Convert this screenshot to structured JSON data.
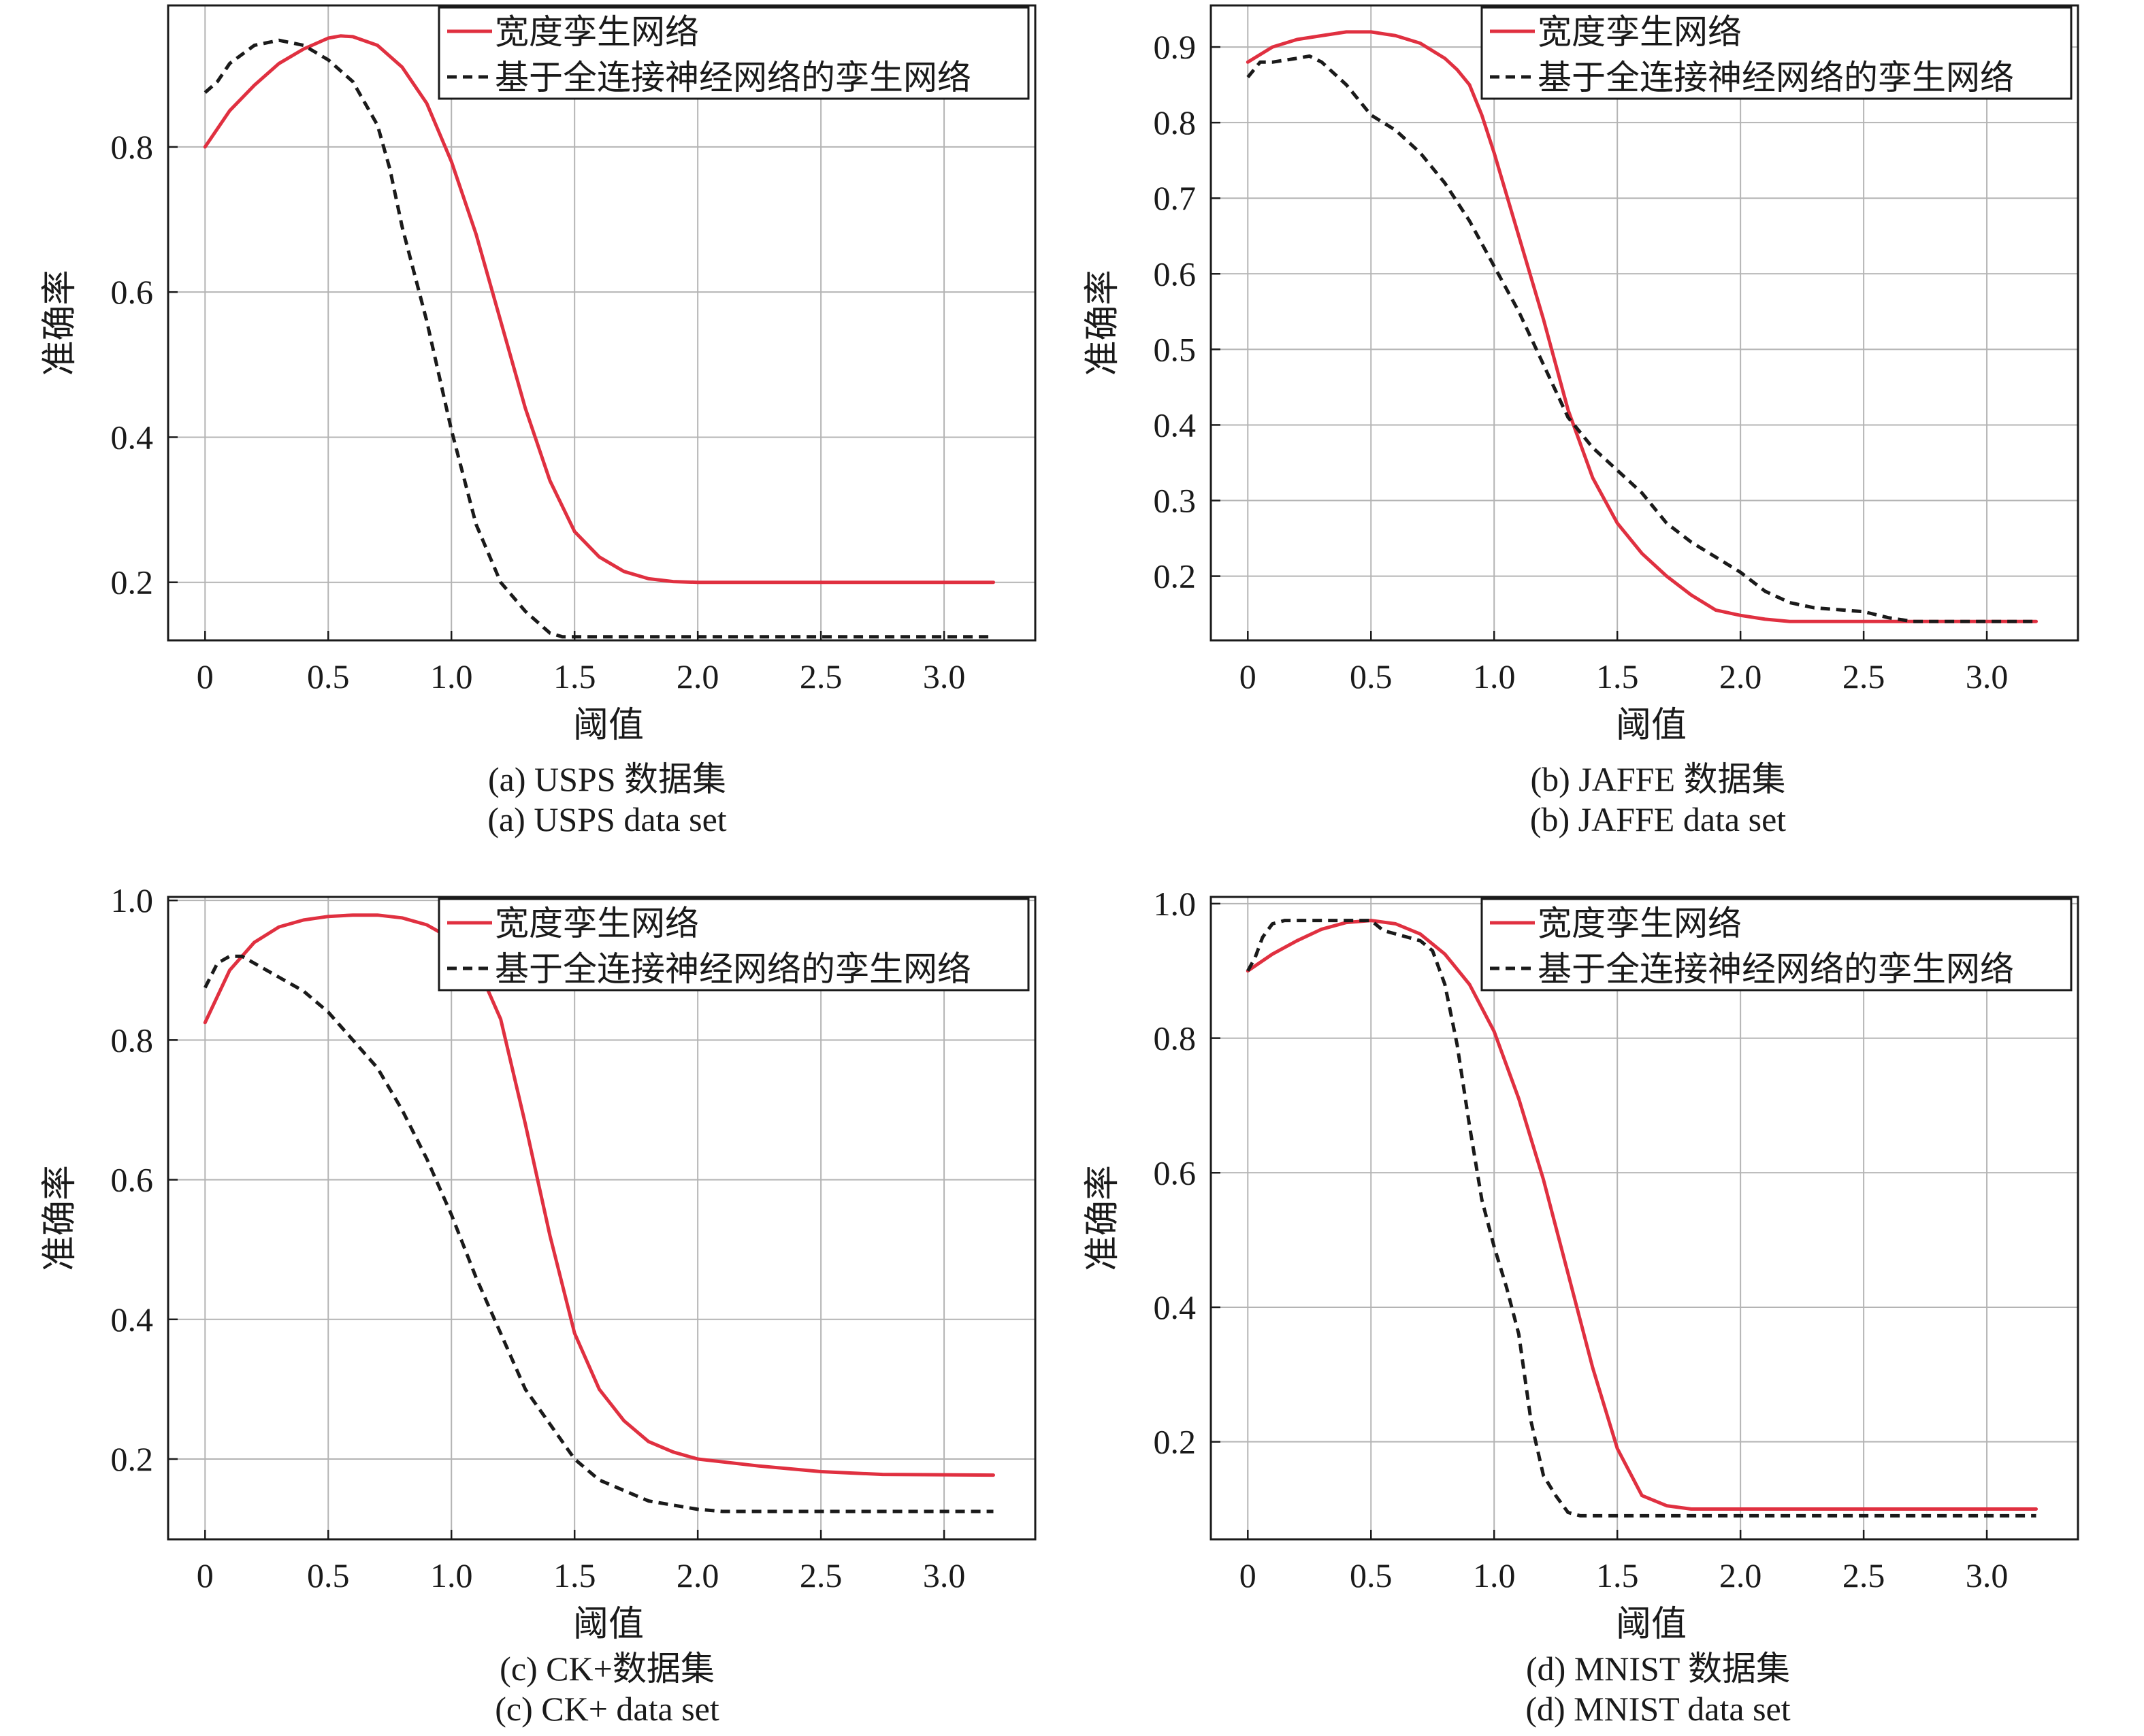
{
  "legend_labels": [
    "宽度孪生网络",
    "基于全连接神经网络的孪生网络"
  ],
  "colors": {
    "red": "#e03040",
    "black": "#1a1a1a",
    "grid": "#b4b4b4"
  },
  "chart_data": [
    {
      "type": "line",
      "panel": "a",
      "xlabel": "阈值",
      "ylabel": "准确率",
      "caption_cn": "(a) USPS 数据集",
      "caption_en": "(a) USPS data set",
      "xlim": [
        -0.15,
        3.37
      ],
      "ylim": [
        0.12,
        0.995
      ],
      "xticks": [
        0,
        0.5,
        1.0,
        1.5,
        2.0,
        2.5,
        3.0
      ],
      "xtick_labels": [
        "0",
        "0.5",
        "1.0",
        "1.5",
        "2.0",
        "2.5",
        "3.0"
      ],
      "yticks": [
        0.2,
        0.4,
        0.6,
        0.8
      ],
      "ytick_labels": [
        "0.2",
        "0.4",
        "0.6",
        "0.8"
      ],
      "legend": "top-right",
      "grid": true,
      "series": [
        {
          "name": "宽度孪生网络",
          "color": "#e03040",
          "dash": "solid",
          "x": [
            0,
            0.1,
            0.2,
            0.3,
            0.4,
            0.5,
            0.55,
            0.6,
            0.7,
            0.8,
            0.9,
            1.0,
            1.1,
            1.2,
            1.3,
            1.4,
            1.5,
            1.6,
            1.7,
            1.8,
            1.9,
            2.0,
            2.5,
            3.2
          ],
          "y": [
            0.8,
            0.85,
            0.885,
            0.915,
            0.935,
            0.95,
            0.953,
            0.952,
            0.94,
            0.91,
            0.86,
            0.78,
            0.68,
            0.56,
            0.44,
            0.34,
            0.27,
            0.235,
            0.215,
            0.205,
            0.201,
            0.2,
            0.2,
            0.2
          ]
        },
        {
          "name": "基于全连接神经网络的孪生网络",
          "color": "#1a1a1a",
          "dash": "dashed",
          "x": [
            0,
            0.05,
            0.1,
            0.2,
            0.3,
            0.4,
            0.5,
            0.6,
            0.7,
            0.75,
            0.8,
            0.9,
            1.0,
            1.1,
            1.2,
            1.3,
            1.4,
            1.45,
            1.5,
            2.0,
            3.2
          ],
          "y": [
            0.875,
            0.89,
            0.915,
            0.94,
            0.947,
            0.94,
            0.92,
            0.89,
            0.83,
            0.77,
            0.69,
            0.56,
            0.41,
            0.28,
            0.2,
            0.16,
            0.13,
            0.125,
            0.125,
            0.125,
            0.125
          ]
        }
      ]
    },
    {
      "type": "line",
      "panel": "b",
      "xlabel": "阈值",
      "ylabel": "准确率",
      "caption_cn": "(b) JAFFE 数据集",
      "caption_en": "(b) JAFFE data set",
      "xlim": [
        -0.15,
        3.37
      ],
      "ylim": [
        0.115,
        0.955
      ],
      "xticks": [
        0,
        0.5,
        1.0,
        1.5,
        2.0,
        2.5,
        3.0
      ],
      "xtick_labels": [
        "0",
        "0.5",
        "1.0",
        "1.5",
        "2.0",
        "2.5",
        "3.0"
      ],
      "yticks": [
        0.2,
        0.3,
        0.4,
        0.5,
        0.6,
        0.7,
        0.8,
        0.9
      ],
      "ytick_labels": [
        "0.2",
        "0.3",
        "0.4",
        "0.5",
        "0.6",
        "0.7",
        "0.8",
        "0.9"
      ],
      "legend": "top-right",
      "grid": true,
      "series": [
        {
          "name": "宽度孪生网络",
          "color": "#e03040",
          "dash": "solid",
          "x": [
            0,
            0.1,
            0.2,
            0.3,
            0.4,
            0.5,
            0.6,
            0.7,
            0.8,
            0.85,
            0.9,
            0.95,
            1.0,
            1.1,
            1.2,
            1.3,
            1.4,
            1.5,
            1.6,
            1.7,
            1.8,
            1.9,
            2.0,
            2.1,
            2.2,
            2.5,
            3.2
          ],
          "y": [
            0.88,
            0.9,
            0.91,
            0.915,
            0.92,
            0.92,
            0.915,
            0.905,
            0.885,
            0.87,
            0.85,
            0.81,
            0.76,
            0.65,
            0.54,
            0.42,
            0.33,
            0.27,
            0.23,
            0.2,
            0.175,
            0.155,
            0.148,
            0.143,
            0.14,
            0.14,
            0.14
          ]
        },
        {
          "name": "基于全连接神经网络的孪生网络",
          "color": "#1a1a1a",
          "dash": "dashed",
          "x": [
            0,
            0.05,
            0.1,
            0.2,
            0.25,
            0.3,
            0.4,
            0.5,
            0.6,
            0.7,
            0.8,
            0.9,
            1.0,
            1.1,
            1.2,
            1.3,
            1.4,
            1.5,
            1.6,
            1.7,
            1.8,
            1.9,
            2.0,
            2.1,
            2.2,
            2.3,
            2.5,
            2.6,
            2.7,
            3.2
          ],
          "y": [
            0.86,
            0.88,
            0.88,
            0.885,
            0.888,
            0.88,
            0.85,
            0.81,
            0.79,
            0.76,
            0.72,
            0.67,
            0.61,
            0.55,
            0.48,
            0.41,
            0.37,
            0.34,
            0.31,
            0.27,
            0.245,
            0.225,
            0.205,
            0.18,
            0.165,
            0.158,
            0.153,
            0.145,
            0.14,
            0.14
          ]
        }
      ]
    },
    {
      "type": "line",
      "panel": "c",
      "xlabel": "阈值",
      "ylabel": "准确率",
      "caption_cn": "(c) CK+数据集",
      "caption_en": "(c) CK+ data set",
      "xlim": [
        -0.15,
        3.37
      ],
      "ylim": [
        0.085,
        1.005
      ],
      "xticks": [
        0,
        0.5,
        1.0,
        1.5,
        2.0,
        2.5,
        3.0
      ],
      "xtick_labels": [
        "0",
        "0.5",
        "1.0",
        "1.5",
        "2.0",
        "2.5",
        "3.0"
      ],
      "yticks": [
        0.2,
        0.4,
        0.6,
        0.8,
        1.0
      ],
      "ytick_labels": [
        "0.2",
        "0.4",
        "0.6",
        "0.8",
        "1.0"
      ],
      "legend": "top-right",
      "grid": true,
      "series": [
        {
          "name": "宽度孪生网络",
          "color": "#e03040",
          "dash": "solid",
          "x": [
            0,
            0.1,
            0.2,
            0.3,
            0.4,
            0.5,
            0.6,
            0.7,
            0.8,
            0.9,
            1.0,
            1.1,
            1.2,
            1.3,
            1.4,
            1.5,
            1.6,
            1.7,
            1.8,
            1.9,
            2.0,
            2.25,
            2.5,
            2.75,
            3.2
          ],
          "y": [
            0.825,
            0.9,
            0.94,
            0.962,
            0.972,
            0.977,
            0.979,
            0.979,
            0.975,
            0.965,
            0.945,
            0.91,
            0.83,
            0.68,
            0.52,
            0.38,
            0.3,
            0.255,
            0.225,
            0.21,
            0.2,
            0.19,
            0.182,
            0.178,
            0.177
          ]
        },
        {
          "name": "基于全连接神经网络的孪生网络",
          "color": "#1a1a1a",
          "dash": "dashed",
          "x": [
            0,
            0.05,
            0.1,
            0.15,
            0.2,
            0.3,
            0.4,
            0.5,
            0.6,
            0.7,
            0.8,
            0.9,
            1.0,
            1.1,
            1.2,
            1.3,
            1.4,
            1.5,
            1.6,
            1.8,
            2.0,
            2.1,
            3.2
          ],
          "y": [
            0.875,
            0.91,
            0.92,
            0.92,
            0.91,
            0.89,
            0.87,
            0.84,
            0.8,
            0.76,
            0.7,
            0.63,
            0.55,
            0.46,
            0.38,
            0.3,
            0.25,
            0.2,
            0.17,
            0.14,
            0.128,
            0.125,
            0.125
          ]
        }
      ]
    },
    {
      "type": "line",
      "panel": "d",
      "xlabel": "阈值",
      "ylabel": "准确率",
      "caption_cn": "(d) MNIST 数据集",
      "caption_en": "(d) MNIST data set",
      "xlim": [
        -0.15,
        3.37
      ],
      "ylim": [
        0.055,
        1.01
      ],
      "xticks": [
        0,
        0.5,
        1.0,
        1.5,
        2.0,
        2.5,
        3.0
      ],
      "xtick_labels": [
        "0",
        "0.5",
        "1.0",
        "1.5",
        "2.0",
        "2.5",
        "3.0"
      ],
      "yticks": [
        0.2,
        0.4,
        0.6,
        0.8,
        1.0
      ],
      "ytick_labels": [
        "0.2",
        "0.4",
        "0.6",
        "0.8",
        "1.0"
      ],
      "legend": "top-right",
      "grid": true,
      "series": [
        {
          "name": "宽度孪生网络",
          "color": "#e03040",
          "dash": "solid",
          "x": [
            0,
            0.1,
            0.2,
            0.3,
            0.4,
            0.5,
            0.6,
            0.7,
            0.8,
            0.9,
            1.0,
            1.1,
            1.2,
            1.3,
            1.4,
            1.5,
            1.6,
            1.7,
            1.8,
            2.0,
            3.2
          ],
          "y": [
            0.9,
            0.925,
            0.945,
            0.962,
            0.972,
            0.975,
            0.97,
            0.955,
            0.925,
            0.88,
            0.81,
            0.71,
            0.59,
            0.45,
            0.31,
            0.19,
            0.12,
            0.105,
            0.1,
            0.1,
            0.1
          ]
        },
        {
          "name": "基于全连接神经网络的孪生网络",
          "color": "#1a1a1a",
          "dash": "dashed",
          "x": [
            0,
            0.03,
            0.06,
            0.1,
            0.15,
            0.3,
            0.5,
            0.55,
            0.6,
            0.7,
            0.75,
            0.8,
            0.85,
            0.9,
            0.95,
            1.0,
            1.05,
            1.1,
            1.15,
            1.2,
            1.25,
            1.3,
            1.35,
            1.5,
            3.2
          ],
          "y": [
            0.9,
            0.92,
            0.95,
            0.97,
            0.975,
            0.975,
            0.975,
            0.96,
            0.955,
            0.945,
            0.93,
            0.88,
            0.79,
            0.67,
            0.56,
            0.49,
            0.43,
            0.36,
            0.23,
            0.15,
            0.12,
            0.095,
            0.09,
            0.09,
            0.09
          ]
        }
      ]
    }
  ]
}
